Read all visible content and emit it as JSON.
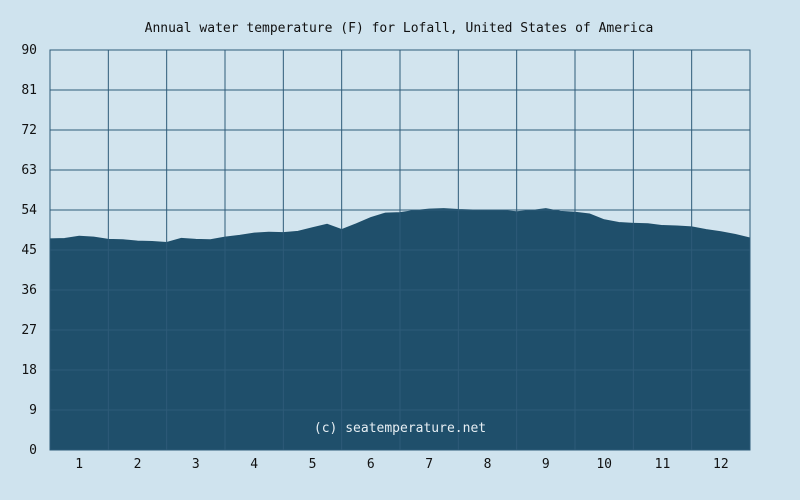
{
  "chart_data": {
    "type": "area",
    "title": "Annual water temperature (F) for Lofall, United States of America",
    "xlabel": "",
    "ylabel": "",
    "ylim": [
      0,
      90
    ],
    "xlim": [
      0.5,
      12.5
    ],
    "y_ticks": [
      "0",
      "9",
      "18",
      "27",
      "36",
      "45",
      "54",
      "63",
      "72",
      "81",
      "90"
    ],
    "x_ticks": [
      "1",
      "2",
      "3",
      "4",
      "5",
      "6",
      "7",
      "8",
      "9",
      "10",
      "11",
      "12"
    ],
    "grid": true,
    "watermark": "(c) seatemperature.net",
    "colors": {
      "background": "#cfe3ee",
      "plot_background": "#d2e4ee",
      "fill": "#1f4f6b",
      "grid": "#2e5b78",
      "text": "#111111"
    },
    "x": [
      0.5,
      0.75,
      1.0,
      1.25,
      1.5,
      1.75,
      2.0,
      2.25,
      2.5,
      2.75,
      3.0,
      3.25,
      3.5,
      3.75,
      4.0,
      4.25,
      4.5,
      4.75,
      5.0,
      5.25,
      5.5,
      5.75,
      6.0,
      6.25,
      6.5,
      6.75,
      7.0,
      7.25,
      7.5,
      7.75,
      8.0,
      8.25,
      8.5,
      8.75,
      9.0,
      9.25,
      9.5,
      9.75,
      10.0,
      10.25,
      10.5,
      10.75,
      11.0,
      11.25,
      11.5,
      11.75,
      12.0,
      12.25,
      12.5
    ],
    "values": [
      47.5,
      47.6,
      48.1,
      47.9,
      47.4,
      47.3,
      47.0,
      46.9,
      46.7,
      47.6,
      47.4,
      47.3,
      47.9,
      48.3,
      48.8,
      49.0,
      48.9,
      49.2,
      50.0,
      50.8,
      49.6,
      50.9,
      52.3,
      53.3,
      53.4,
      53.9,
      54.2,
      54.3,
      54.1,
      54.0,
      53.9,
      53.9,
      53.6,
      53.9,
      54.3,
      53.7,
      53.5,
      53.1,
      51.8,
      51.2,
      51.0,
      50.9,
      50.5,
      50.4,
      50.2,
      49.6,
      49.1,
      48.5,
      47.7
    ]
  }
}
